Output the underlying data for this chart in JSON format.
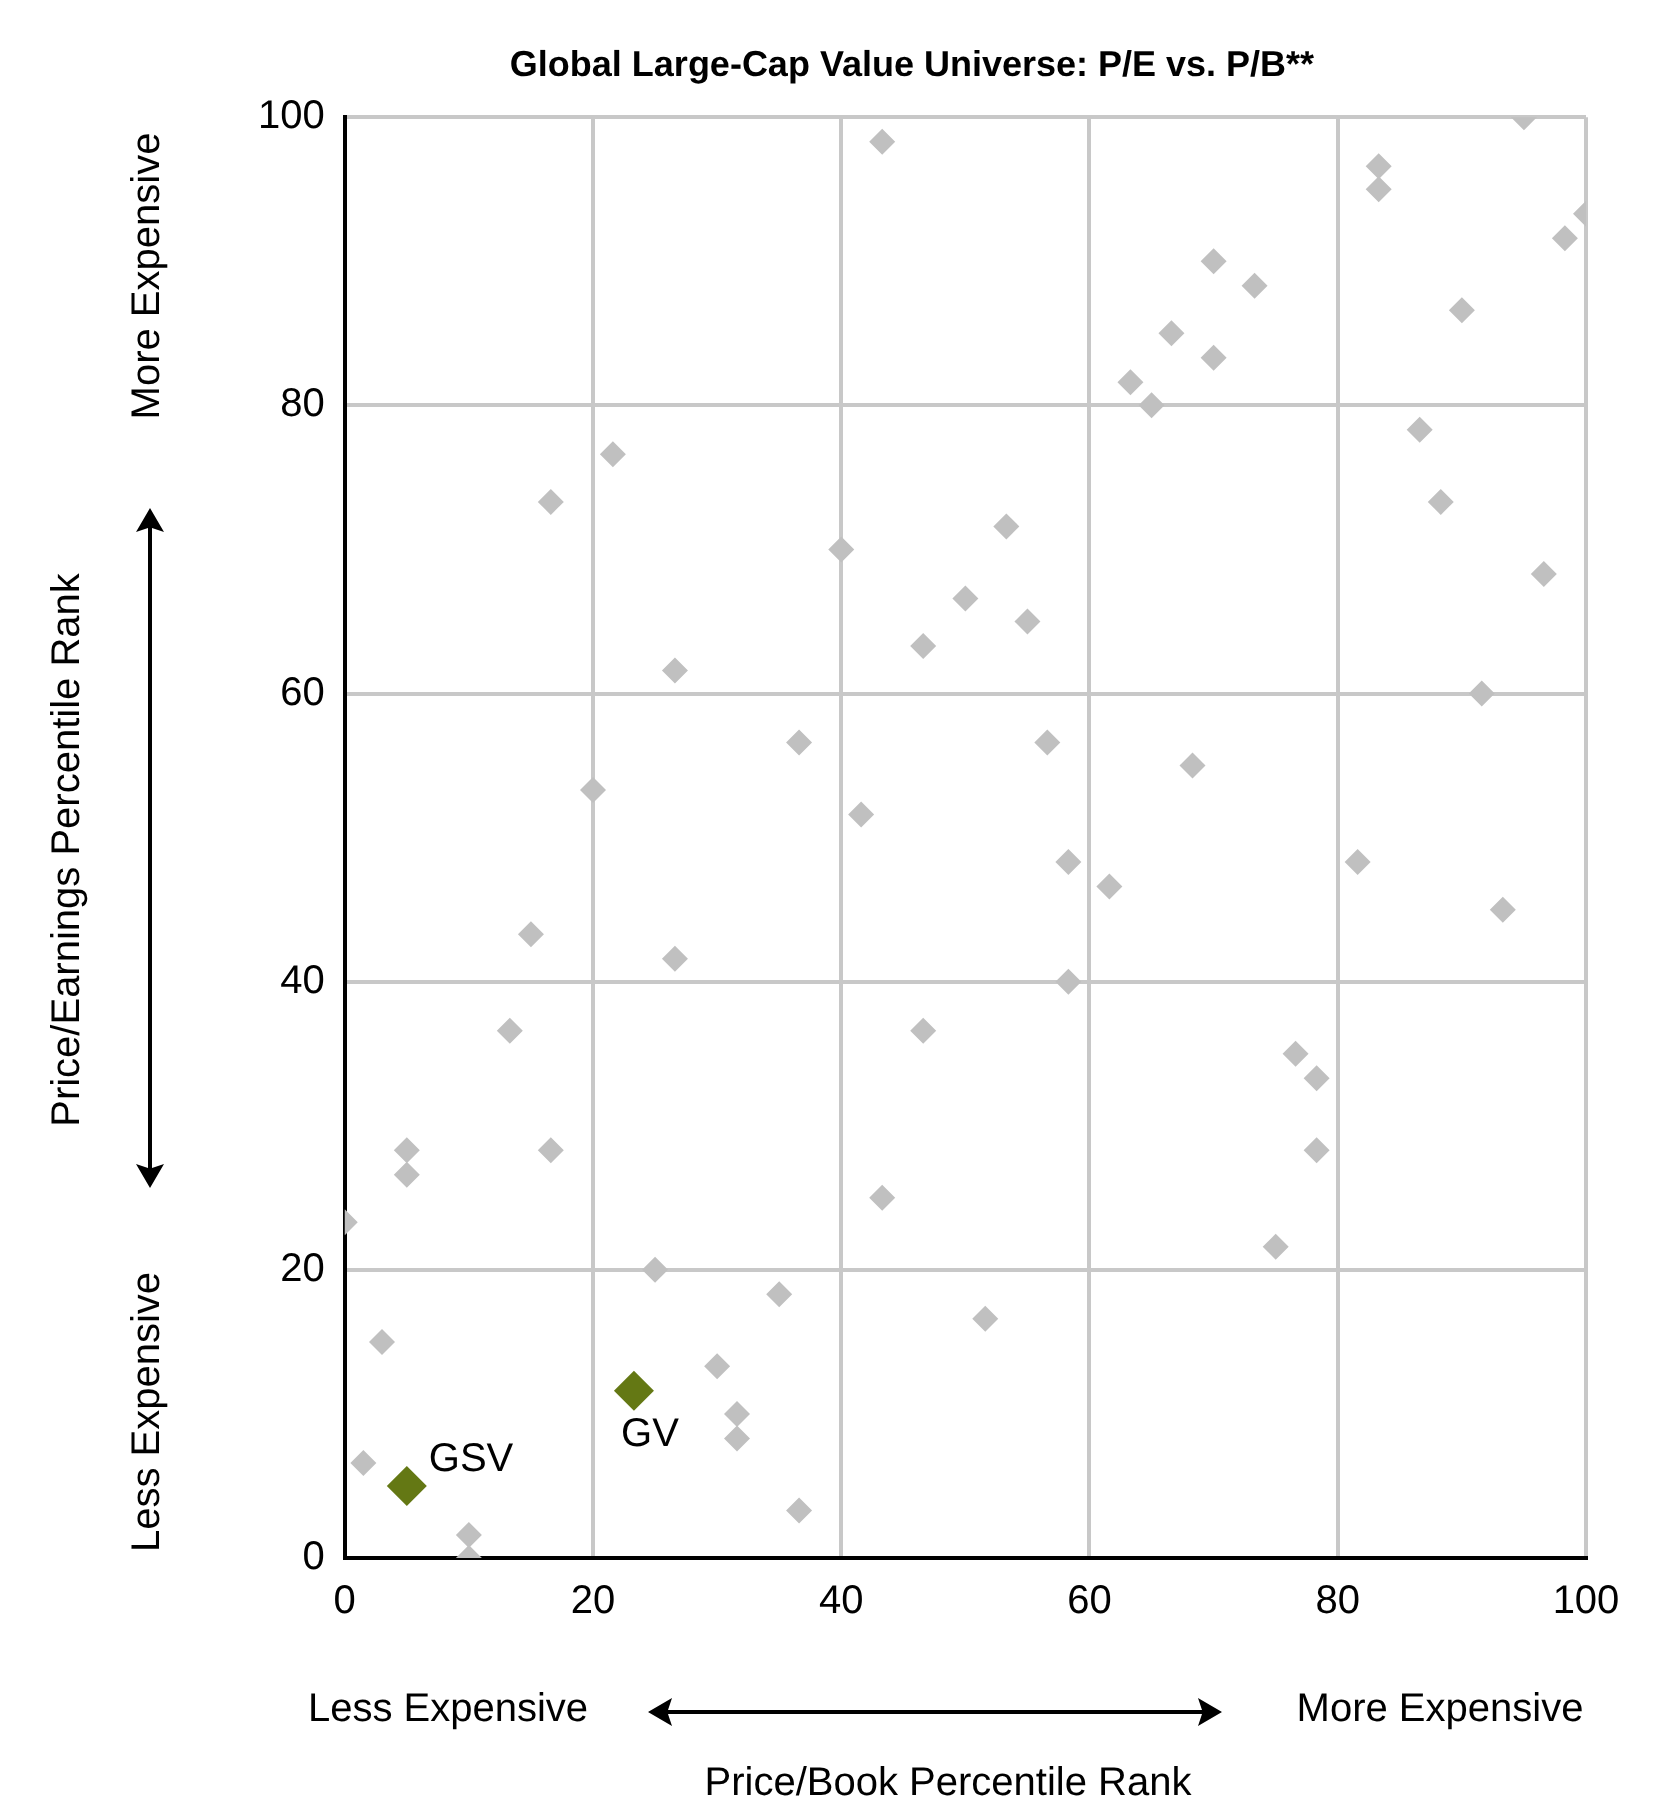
{
  "chart_data": {
    "type": "scatter",
    "title": "Global Large-Cap Value Universe: P/E vs. P/B**",
    "xlabel": "Price/Book Percentile Rank",
    "ylabel": "Price/Earnings Percentile Rank",
    "xlim": [
      0,
      100
    ],
    "xticks": [
      0,
      20,
      40,
      60,
      80,
      100
    ],
    "ylim": [
      0,
      100
    ],
    "yticks": [
      0,
      20,
      40,
      60,
      80,
      100
    ],
    "grid": true,
    "legend": false,
    "marker": "diamond",
    "annotations": [
      "More Expensive",
      "Less Expensive",
      "Less Expensive",
      "More Expensive"
    ],
    "series": [
      {
        "color": "#c0c0c0",
        "x": [
          0,
          1.5,
          3,
          5,
          5,
          10,
          10,
          13.3,
          15,
          16.6,
          16.6,
          20,
          21.6,
          25,
          26.6,
          26.6,
          30,
          31.6,
          31.6,
          35,
          36.6,
          36.6,
          40,
          41.6,
          43.3,
          43.3,
          46.6,
          46.6,
          50,
          51.6,
          53.3,
          55,
          56.6,
          58.3,
          58.3,
          61.6,
          63.3,
          65,
          66.6,
          68.3,
          70,
          70,
          73.3,
          75,
          76.6,
          78.3,
          78.3,
          81.6,
          83.3,
          83.3,
          86.6,
          88.3,
          90,
          91.6,
          93.3,
          95,
          96.6,
          98.3,
          100
        ],
        "values": [
          23.3,
          6.6,
          15,
          28.3,
          26.6,
          1.6,
          0,
          36.6,
          43.3,
          73.3,
          28.3,
          53.3,
          76.6,
          20,
          61.6,
          41.6,
          13.3,
          10,
          8.3,
          18.3,
          56.6,
          3.3,
          70,
          51.6,
          98.3,
          25,
          63.3,
          36.6,
          66.6,
          16.6,
          71.6,
          65,
          56.6,
          48.3,
          40,
          46.6,
          81.6,
          80,
          85,
          55,
          90,
          83.3,
          88.3,
          21.6,
          35,
          33.3,
          28.3,
          48.3,
          96.6,
          95,
          78.3,
          73.3,
          86.6,
          60,
          45,
          100,
          68.3,
          91.6,
          93.3
        ]
      },
      {
        "name": "GSV",
        "color": "#647814",
        "x": [
          5
        ],
        "values": [
          5
        ]
      },
      {
        "name": "GV",
        "color": "#647814",
        "x": [
          23.3
        ],
        "values": [
          11.6
        ]
      }
    ]
  }
}
